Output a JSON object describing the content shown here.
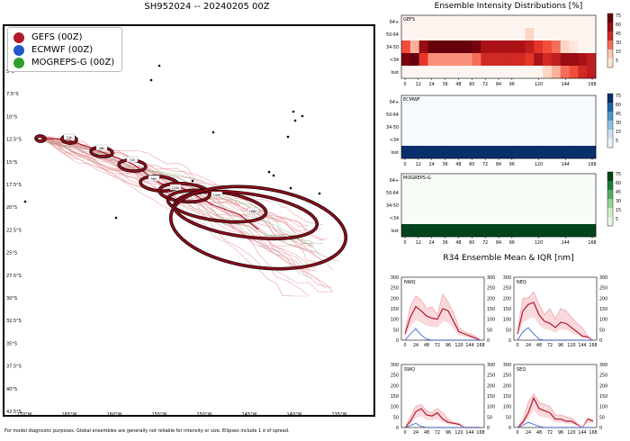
{
  "title": "SH952024 -- 20240205 00Z",
  "footnote": "For model diagnostic purposes. Global ensembles are generally not reliable for intensity or size. Ellipses include 1 σ of spread.",
  "legend": [
    {
      "label": "GEFS (00Z)",
      "color": "#b2182b"
    },
    {
      "label": "ECMWF (00Z)",
      "color": "#2456c9"
    },
    {
      "label": "MOGREPS-G (00Z)",
      "color": "#2ca02c"
    }
  ],
  "map": {
    "lat_labels": [
      "5°S",
      "7.5°S",
      "10°S",
      "12.5°S",
      "15°S",
      "17.5°S",
      "20°S",
      "22.5°S",
      "25°S",
      "27.5°S",
      "30°S",
      "32.5°S",
      "35°S",
      "37.5°S",
      "40°S",
      "42.5°S"
    ],
    "lon_labels": [
      "170°W",
      "165°W",
      "160°W",
      "155°W",
      "150°W",
      "145°W",
      "140°W",
      "135°W"
    ],
    "ellipse_labels": [
      "24h",
      "48h",
      "72h",
      "96h",
      "120h",
      "144h",
      "168h"
    ]
  },
  "intensity_title": "Ensemble Intensity Distributions [%]",
  "r34_title": "R34 Ensemble Mean & IQR [nm]",
  "heatmap_ylabels": [
    "64+",
    "50-64",
    "34-50",
    "<34",
    "lost"
  ],
  "heatmap_xticks": [
    "0",
    "12",
    "24",
    "36",
    "48",
    "60",
    "72",
    "84",
    "96",
    "120",
    "144",
    "168"
  ],
  "cbar_ticks": [
    "75",
    "60",
    "45",
    "30",
    "15",
    "5"
  ],
  "r34_yticks": [
    "0",
    "50",
    "100",
    "150",
    "200",
    "250",
    "300"
  ],
  "r34_xticks": [
    "0",
    "24",
    "48",
    "72",
    "96",
    "120",
    "144",
    "168"
  ],
  "chart_data": [
    {
      "type": "heatmap",
      "name": "GEFS",
      "title": "GEFS",
      "columns": 22,
      "rows": [
        "64+",
        "50-64",
        "34-50",
        "<34",
        "lost"
      ],
      "values": [
        [
          0,
          0,
          0,
          0,
          0,
          0,
          0,
          0,
          0,
          0,
          0,
          0,
          0,
          0,
          0,
          0,
          0,
          0,
          0,
          0,
          0,
          0
        ],
        [
          0,
          0,
          0,
          0,
          0,
          0,
          0,
          0,
          0,
          0,
          0,
          0,
          0,
          0,
          10,
          0,
          0,
          0,
          0,
          0,
          0,
          0
        ],
        [
          35,
          20,
          60,
          75,
          75,
          75,
          75,
          75,
          70,
          55,
          55,
          55,
          55,
          55,
          50,
          40,
          35,
          30,
          10,
          5,
          0,
          0
        ],
        [
          70,
          80,
          40,
          25,
          25,
          25,
          25,
          25,
          30,
          45,
          45,
          45,
          45,
          45,
          40,
          55,
          45,
          50,
          60,
          60,
          55,
          50
        ],
        [
          0,
          0,
          0,
          0,
          0,
          0,
          0,
          0,
          0,
          0,
          0,
          0,
          0,
          0,
          0,
          0,
          10,
          20,
          30,
          35,
          45,
          50
        ]
      ]
    },
    {
      "type": "heatmap",
      "name": "ECMWF",
      "title": "ECMWF",
      "columns": 22,
      "rows": [
        "64+",
        "50-64",
        "34-50",
        "<34",
        "lost"
      ],
      "values": [
        [
          0,
          0,
          0,
          0,
          0,
          0,
          0,
          0,
          0,
          0,
          0,
          0,
          0,
          0,
          0,
          0,
          0,
          0,
          0,
          0,
          0,
          0
        ],
        [
          0,
          0,
          0,
          0,
          0,
          0,
          0,
          0,
          0,
          0,
          0,
          0,
          0,
          0,
          0,
          0,
          0,
          0,
          0,
          0,
          0,
          0
        ],
        [
          0,
          0,
          0,
          0,
          0,
          0,
          0,
          0,
          0,
          0,
          0,
          0,
          0,
          0,
          0,
          0,
          0,
          0,
          0,
          0,
          0,
          0
        ],
        [
          0,
          0,
          0,
          0,
          0,
          0,
          0,
          0,
          0,
          0,
          0,
          0,
          0,
          0,
          0,
          0,
          0,
          0,
          0,
          0,
          0,
          0
        ],
        [
          100,
          100,
          100,
          100,
          100,
          100,
          100,
          100,
          100,
          100,
          100,
          100,
          100,
          100,
          100,
          100,
          100,
          100,
          100,
          100,
          100,
          100
        ]
      ]
    },
    {
      "type": "heatmap",
      "name": "MOGREPS-G",
      "title": "MOGREPS-G",
      "columns": 22,
      "rows": [
        "64+",
        "50-64",
        "34-50",
        "<34",
        "lost"
      ],
      "values": [
        [
          0,
          0,
          0,
          0,
          0,
          0,
          0,
          0,
          0,
          0,
          0,
          0,
          0,
          0,
          0,
          0,
          0,
          0,
          0,
          0,
          0,
          0
        ],
        [
          0,
          0,
          0,
          0,
          0,
          0,
          0,
          0,
          0,
          0,
          0,
          0,
          0,
          0,
          0,
          0,
          0,
          0,
          0,
          0,
          0,
          0
        ],
        [
          0,
          0,
          0,
          0,
          0,
          0,
          0,
          0,
          0,
          0,
          0,
          0,
          0,
          0,
          0,
          0,
          0,
          0,
          0,
          0,
          0,
          0
        ],
        [
          0,
          0,
          0,
          0,
          0,
          0,
          0,
          0,
          0,
          0,
          0,
          0,
          0,
          0,
          0,
          0,
          0,
          0,
          0,
          0,
          0,
          0
        ],
        [
          100,
          100,
          100,
          100,
          100,
          100,
          100,
          100,
          100,
          100,
          100,
          100,
          100,
          100,
          100,
          100,
          100,
          100,
          100,
          100,
          100,
          100
        ]
      ]
    },
    {
      "type": "line",
      "name": "NWQ",
      "title": "NWQ",
      "x": [
        0,
        12,
        24,
        36,
        48,
        60,
        72,
        84,
        96,
        108,
        120,
        132,
        144,
        156,
        168
      ],
      "ylim": [
        0,
        300
      ],
      "series": [
        {
          "name": "GEFS mean",
          "color": "#b2182b",
          "values": [
            30,
            110,
            160,
            140,
            115,
            105,
            100,
            150,
            140,
            90,
            40,
            30,
            20,
            10,
            0
          ]
        },
        {
          "name": "GEFS IQR high",
          "color": "#f4a5ae",
          "values": [
            40,
            160,
            210,
            190,
            150,
            160,
            120,
            220,
            180,
            130,
            60,
            40,
            30,
            20,
            0
          ]
        },
        {
          "name": "ECMWF mean",
          "color": "#2456c9",
          "values": [
            0,
            30,
            55,
            25,
            5,
            0,
            0,
            0,
            0,
            0,
            0,
            0,
            0,
            0,
            0
          ]
        }
      ]
    },
    {
      "type": "line",
      "name": "NEQ",
      "title": "NEQ",
      "x": [
        0,
        12,
        24,
        36,
        48,
        60,
        72,
        84,
        96,
        108,
        120,
        132,
        144,
        156,
        168
      ],
      "ylim": [
        0,
        300
      ],
      "series": [
        {
          "name": "GEFS mean",
          "color": "#b2182b",
          "values": [
            30,
            140,
            170,
            180,
            120,
            90,
            80,
            60,
            85,
            80,
            60,
            40,
            20,
            15,
            0
          ]
        },
        {
          "name": "GEFS IQR high",
          "color": "#f4a5ae",
          "values": [
            40,
            200,
            200,
            230,
            170,
            120,
            150,
            100,
            150,
            140,
            110,
            80,
            60,
            20,
            0
          ]
        },
        {
          "name": "ECMWF mean",
          "color": "#2456c9",
          "values": [
            0,
            40,
            60,
            30,
            5,
            0,
            0,
            0,
            0,
            0,
            0,
            0,
            0,
            0,
            0
          ]
        }
      ]
    },
    {
      "type": "line",
      "name": "SWQ",
      "title": "SWQ",
      "x": [
        0,
        12,
        24,
        36,
        48,
        60,
        72,
        84,
        96,
        108,
        120,
        132,
        144,
        156,
        168
      ],
      "ylim": [
        0,
        300
      ],
      "series": [
        {
          "name": "GEFS mean",
          "color": "#b2182b",
          "values": [
            0,
            30,
            75,
            90,
            60,
            55,
            70,
            40,
            25,
            20,
            15,
            0,
            0,
            0,
            0
          ]
        },
        {
          "name": "GEFS IQR high",
          "color": "#f4a5ae",
          "values": [
            0,
            50,
            100,
            110,
            80,
            70,
            90,
            70,
            40,
            25,
            20,
            0,
            0,
            0,
            0
          ]
        },
        {
          "name": "ECMWF mean",
          "color": "#2456c9",
          "values": [
            0,
            10,
            20,
            5,
            0,
            0,
            0,
            0,
            0,
            0,
            0,
            0,
            0,
            0,
            0
          ]
        }
      ]
    },
    {
      "type": "line",
      "name": "SEQ",
      "title": "SEQ",
      "x": [
        0,
        12,
        24,
        36,
        48,
        60,
        72,
        84,
        96,
        108,
        120,
        132,
        144,
        156,
        168
      ],
      "ylim": [
        0,
        300
      ],
      "series": [
        {
          "name": "GEFS mean",
          "color": "#b2182b",
          "values": [
            0,
            25,
            70,
            140,
            90,
            80,
            70,
            40,
            40,
            30,
            30,
            15,
            0,
            40,
            30
          ]
        },
        {
          "name": "GEFS IQR high",
          "color": "#f4a5ae",
          "values": [
            0,
            40,
            120,
            160,
            120,
            110,
            100,
            60,
            60,
            50,
            45,
            20,
            0,
            45,
            35
          ]
        },
        {
          "name": "ECMWF mean",
          "color": "#2456c9",
          "values": [
            0,
            10,
            25,
            15,
            5,
            0,
            0,
            0,
            0,
            0,
            0,
            0,
            0,
            0,
            0
          ]
        }
      ]
    }
  ]
}
